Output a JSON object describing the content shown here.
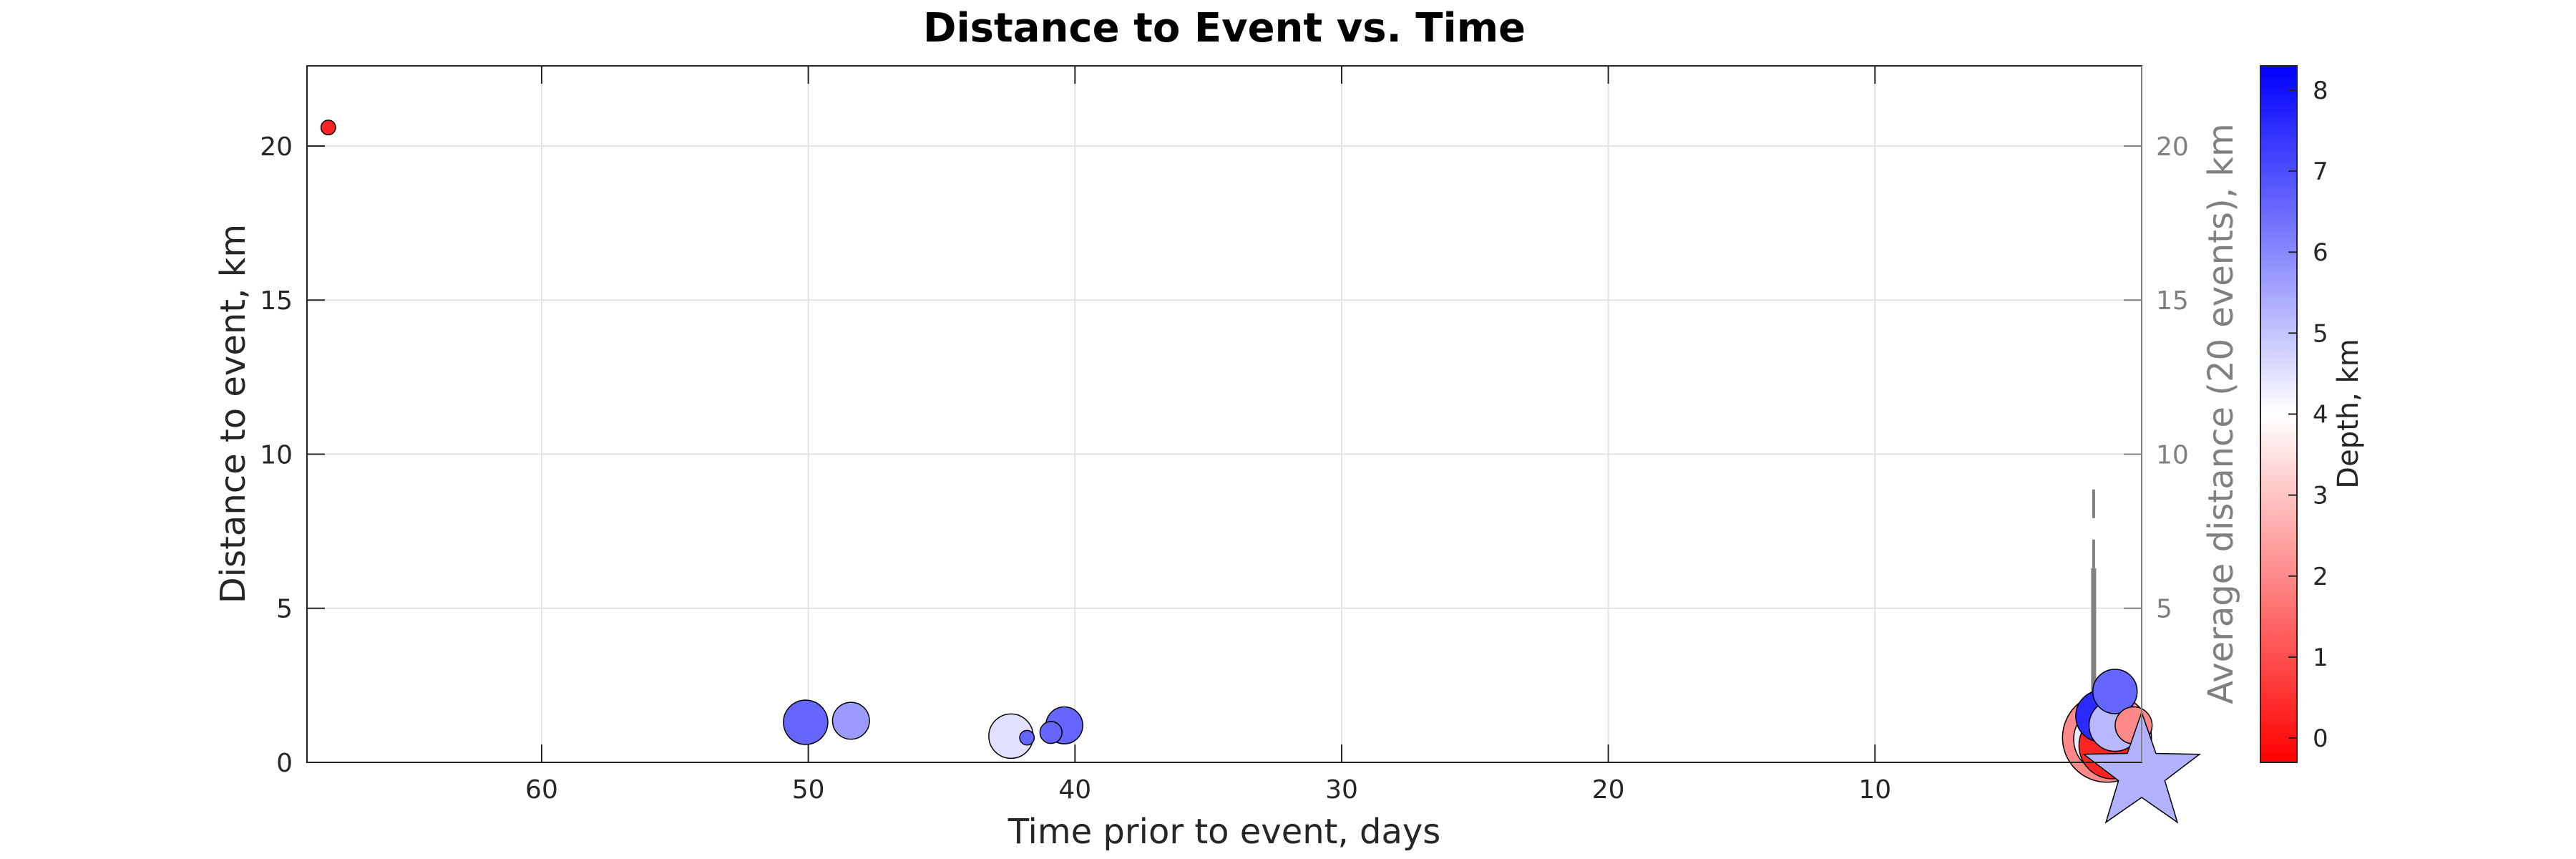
{
  "chart_data": {
    "type": "scatter",
    "title": "Distance to Event vs. Time",
    "xlabel": "Time prior to event, days",
    "ylabel": "Distance to event, km",
    "ylabel_right": "Average distance (20 events), km",
    "colorbar_label": "Depth, km",
    "xlim": [
      68.8,
      0
    ],
    "ylim": [
      0,
      22.6
    ],
    "xticks": [
      60,
      50,
      40,
      30,
      20,
      10
    ],
    "yticks": [
      0,
      5,
      10,
      15,
      20
    ],
    "yticks_right": [
      5,
      10,
      15,
      20
    ],
    "colorbar_range": [
      -0.3,
      8.3
    ],
    "colorbar_ticks": [
      0,
      1,
      2,
      3,
      4,
      5,
      6,
      7,
      8
    ],
    "grid": true,
    "colors": {
      "low": "#ff0000",
      "mid": "#ffffff",
      "high": "#0000ff",
      "avg_line": "#808080"
    },
    "points": [
      {
        "t": 68.0,
        "d": 20.6,
        "depth": 0.3,
        "size": 1
      },
      {
        "t": 50.1,
        "d": 1.3,
        "depth": 6.6,
        "size": 5
      },
      {
        "t": 48.4,
        "d": 1.35,
        "depth": 5.7,
        "size": 4
      },
      {
        "t": 42.4,
        "d": 0.85,
        "depth": 4.5,
        "size": 5
      },
      {
        "t": 41.8,
        "d": 0.8,
        "depth": 6.6,
        "size": 1
      },
      {
        "t": 40.9,
        "d": 0.97,
        "depth": 6.6,
        "size": 2
      },
      {
        "t": 40.4,
        "d": 1.2,
        "depth": 6.6,
        "size": 4
      },
      {
        "t": 1.3,
        "d": 0.8,
        "depth": 2.0,
        "size": 11
      },
      {
        "t": 1.5,
        "d": 1.5,
        "depth": 7.6,
        "size": 6
      },
      {
        "t": 1.3,
        "d": 0.75,
        "depth": 4.3,
        "size": 8
      },
      {
        "t": 1.1,
        "d": 0.55,
        "depth": 0.3,
        "size": 8
      },
      {
        "t": 1.0,
        "d": 1.2,
        "depth": 5.2,
        "size": 6
      },
      {
        "t": 1.0,
        "d": 2.3,
        "depth": 6.6,
        "size": 5
      },
      {
        "t": 0.3,
        "d": 1.2,
        "depth": 2.0,
        "size": 4
      }
    ],
    "mainshock": {
      "t": 0.0,
      "d": 0.0,
      "depth": 5.3
    },
    "avg_line": [
      {
        "t": 1.8,
        "d": 0.7
      },
      {
        "t": 1.8,
        "d": 6.3
      },
      {
        "t": 1.8,
        "d": 6.0
      },
      {
        "t": 1.8,
        "d": 0.9
      },
      {
        "t": 0.0,
        "d": 0.9
      },
      {
        "t": 0.0,
        "d": 0.7
      },
      {
        "t": 1.8,
        "d": 0.7
      }
    ],
    "avg_line_dashed": [
      {
        "t": 1.8,
        "d": 6.3
      },
      {
        "t": 1.8,
        "d": 9.3
      }
    ]
  }
}
